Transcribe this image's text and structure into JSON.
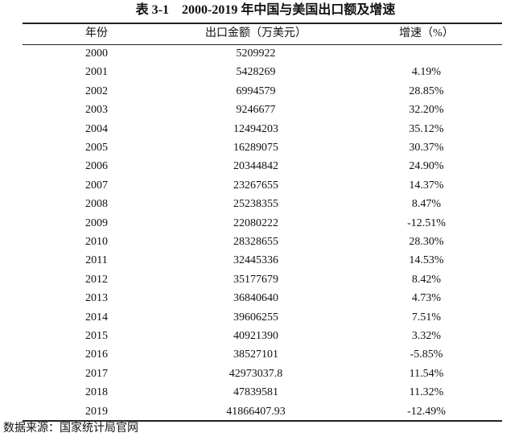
{
  "title": "表 3-1　2000-2019 年中国与美国出口额及增速",
  "table": {
    "header": [
      "年份",
      "出口金额（万美元）",
      "增速（%）"
    ],
    "rows": [
      [
        "2000",
        "5209922"
      ],
      [
        "2001",
        "5428269",
        "4.19%"
      ],
      [
        "2002",
        "6994579",
        "28.85%"
      ],
      [
        "2003",
        "9246677",
        "32.20%"
      ],
      [
        "2004",
        "12494203",
        "35.12%"
      ],
      [
        "2005",
        "16289075",
        "30.37%"
      ],
      [
        "2006",
        "20344842",
        "24.90%"
      ],
      [
        "2007",
        "23267655",
        "14.37%"
      ],
      [
        "2008",
        "25238355",
        "8.47%"
      ],
      [
        "2009",
        "22080222",
        "-12.51%"
      ],
      [
        "2010",
        "28328655",
        "28.30%"
      ],
      [
        "2011",
        "32445336",
        "14.53%"
      ],
      [
        "2012",
        "35177679",
        "8.42%"
      ],
      [
        "2013",
        "36840640",
        "4.73%"
      ],
      [
        "2014",
        "39606255",
        "7.51%"
      ],
      [
        "2015",
        "40921390",
        "3.32%"
      ],
      [
        "2016",
        "38527101",
        "-5.85%"
      ],
      [
        "2017",
        "42973037.8",
        "11.54%"
      ],
      [
        "2018",
        "47839581",
        "11.32%"
      ],
      [
        "2019",
        "41866407.93",
        "-12.49%"
      ]
    ]
  },
  "source": "数据来源：国家统计局官网"
}
